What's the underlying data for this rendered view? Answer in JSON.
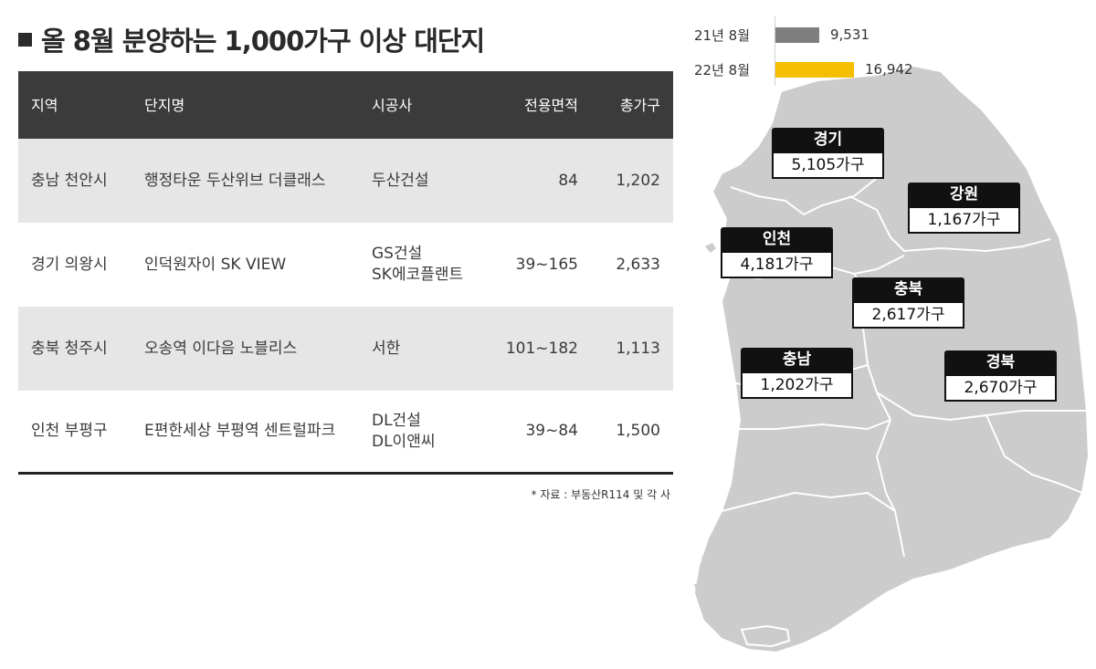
{
  "title": "올 8월 분양하는 1,000가구 이상 대단지",
  "table": {
    "headers": [
      "지역",
      "단지명",
      "시공사",
      "전용면적",
      "총가구"
    ],
    "rows": [
      {
        "region": "충남 천안시",
        "complex": "행정타운 두산위브 더클래스",
        "builder_1": "두산건설",
        "builder_2": "",
        "area": "84",
        "households": "1,202"
      },
      {
        "region": "경기 의왕시",
        "complex": "인덕원자이 SK VIEW",
        "builder_1": "GS건설",
        "builder_2": "SK에코플랜트",
        "area": "39~165",
        "households": "2,633"
      },
      {
        "region": "충북 청주시",
        "complex": "오송역 이다음 노블리스",
        "builder_1": "서한",
        "builder_2": "",
        "area": "101~182",
        "households": "1,113"
      },
      {
        "region": "인천 부평구",
        "complex": "E편한세상 부평역 센트럴파크",
        "builder_1": "DL건설",
        "builder_2": "DL이앤씨",
        "area": "39~84",
        "households": "1,500"
      }
    ],
    "source": "* 자료 :  부동산R114 및 각 사"
  },
  "chart_data": {
    "type": "bar",
    "orientation": "horizontal",
    "categories": [
      "21년 8월",
      "22년 8월"
    ],
    "values": [
      9531,
      16942
    ],
    "value_labels": [
      "9,531",
      "16,942"
    ],
    "colors": [
      "#7f7f7f",
      "#f5be00"
    ]
  },
  "regions": [
    {
      "name": "경기",
      "value": "5,105가구"
    },
    {
      "name": "강원",
      "value": "1,167가구"
    },
    {
      "name": "인천",
      "value": "4,181가구"
    },
    {
      "name": "충북",
      "value": "2,617가구"
    },
    {
      "name": "충남",
      "value": "1,202가구"
    },
    {
      "name": "경북",
      "value": "2,670가구"
    }
  ],
  "colors": {
    "map_fill": "#cccccc",
    "map_border": "#ffffff",
    "header_bg": "#3b3b3b",
    "row_alt": "#e6e6e6"
  }
}
